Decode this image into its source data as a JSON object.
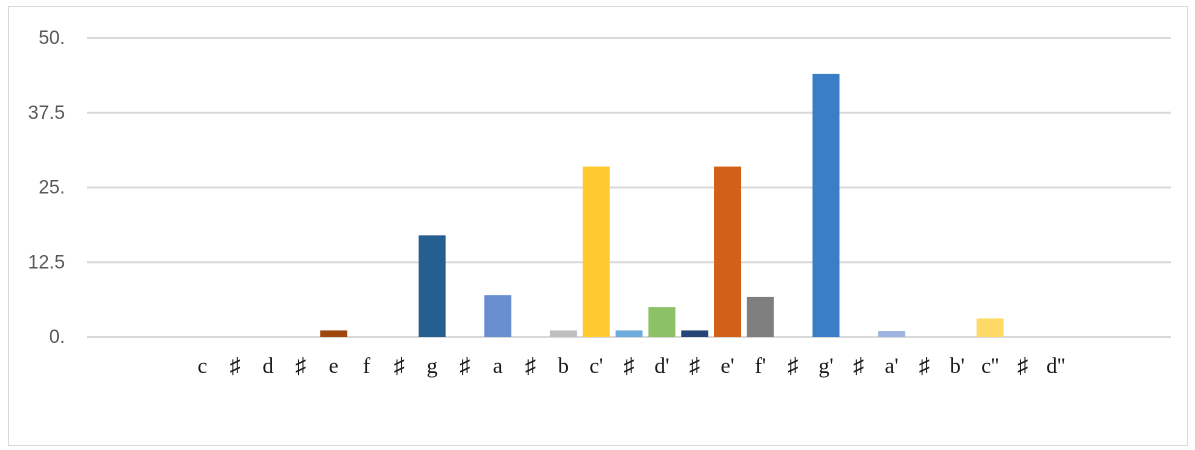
{
  "chart_data": {
    "type": "bar",
    "title": "",
    "xlabel": "",
    "ylabel": "",
    "ylim": [
      0,
      50
    ],
    "y_ticks": [
      "0.",
      "12.5",
      "25.",
      "37.5",
      "50."
    ],
    "y_tick_values": [
      0,
      12.5,
      25,
      37.5,
      50
    ],
    "grid": true,
    "legend": "none",
    "categories": [
      "c",
      "#",
      "d",
      "#",
      "e",
      "f",
      "#",
      "g",
      "#",
      "a",
      "#",
      "b",
      "c'",
      "#",
      "d'",
      "#",
      "e'",
      "f'",
      "#",
      "g'",
      "#",
      "a'",
      "#",
      "b'",
      "c''",
      "#",
      "d''"
    ],
    "tick_labels": [
      "c",
      "♯",
      "d",
      "♯",
      "e",
      "f",
      "♯",
      "g",
      "♯",
      "a",
      "♯",
      "b",
      "c'",
      "♯",
      "d'",
      "♯",
      "e'",
      "f'",
      "♯",
      "g'",
      "♯",
      "a'",
      "♯",
      "b'",
      "c''",
      "♯",
      "d''"
    ],
    "values": [
      0,
      0,
      0,
      0,
      1.1,
      0,
      0,
      17,
      0,
      7,
      0,
      1.1,
      28.5,
      1.1,
      5,
      1.1,
      28.5,
      6.7,
      0,
      44,
      0,
      1,
      0,
      0,
      3.1,
      0,
      0
    ],
    "colors": [
      "#4472c4",
      "#4472c4",
      "#4472c4",
      "#4472c4",
      "#9e480e",
      "#4472c4",
      "#4472c4",
      "#255e91",
      "#4472c4",
      "#698ed0",
      "#4472c4",
      "#bfbfbf",
      "#ffc930",
      "#6faadc",
      "#8cc168",
      "#264478",
      "#d36017",
      "#7f7f7f",
      "#4472c4",
      "#3a7ec8",
      "#4472c4",
      "#9eb4e0",
      "#4472c4",
      "#4472c4",
      "#ffd966",
      "#4472c4",
      "#4472c4"
    ]
  }
}
